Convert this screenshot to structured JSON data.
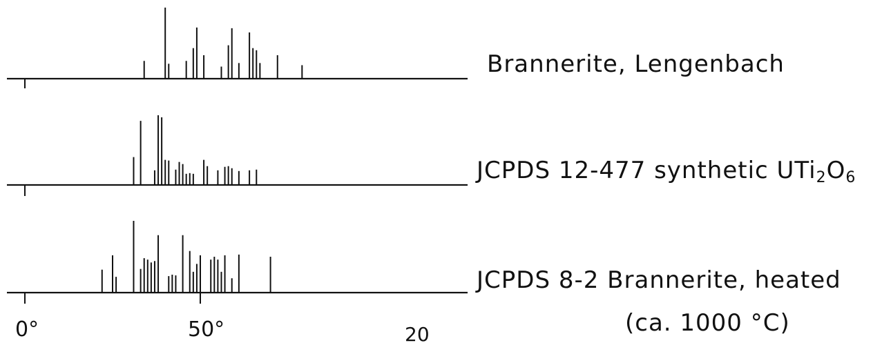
{
  "chart_data": [
    {
      "type": "bar",
      "label": "Brannerite, Lengenbach",
      "x": [
        34,
        40,
        41,
        46,
        48,
        49,
        51,
        56,
        58,
        59,
        61,
        64,
        65,
        66,
        67,
        72,
        79
      ],
      "values": [
        0.25,
        1.0,
        0.21,
        0.25,
        0.43,
        0.72,
        0.33,
        0.17,
        0.47,
        0.71,
        0.22,
        0.65,
        0.43,
        0.4,
        0.22,
        0.33,
        0.19
      ]
    },
    {
      "type": "bar",
      "label_prefix": "JCPDS 12-477  synthetic UTi",
      "label_sub1": "2",
      "label_mid": "O",
      "label_sub2": "6",
      "x": [
        31,
        33,
        37,
        38,
        39,
        40,
        41,
        43,
        44,
        45,
        46,
        47,
        48,
        51,
        52,
        55,
        57,
        58,
        59,
        61,
        64,
        66
      ],
      "values": [
        0.4,
        0.92,
        0.21,
        1.0,
        0.97,
        0.36,
        0.35,
        0.22,
        0.33,
        0.3,
        0.16,
        0.17,
        0.16,
        0.36,
        0.27,
        0.21,
        0.26,
        0.27,
        0.24,
        0.2,
        0.21,
        0.22
      ]
    },
    {
      "type": "bar",
      "label": "JCPDS 8-2   Brannerite, heated",
      "label_line2": "(ca. 1000 °C)",
      "x": [
        22,
        25,
        26,
        31,
        33,
        34,
        35,
        36,
        37,
        38,
        41,
        42,
        43,
        45,
        47,
        48,
        49,
        50,
        53,
        54,
        55,
        56,
        57,
        59,
        61,
        70
      ],
      "values": [
        0.32,
        0.52,
        0.22,
        1.0,
        0.33,
        0.48,
        0.46,
        0.42,
        0.44,
        0.8,
        0.23,
        0.25,
        0.24,
        0.8,
        0.58,
        0.29,
        0.4,
        0.52,
        0.46,
        0.5,
        0.46,
        0.29,
        0.52,
        0.2,
        0.53,
        0.5
      ]
    }
  ],
  "axis": {
    "tick_labels": [
      "0°",
      "50°"
    ],
    "extra_label": "20"
  }
}
